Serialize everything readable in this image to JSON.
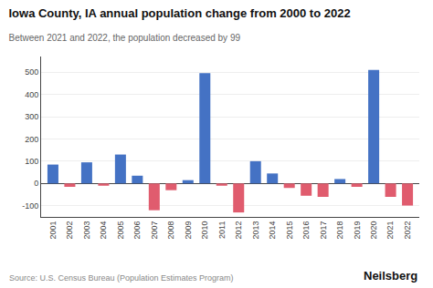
{
  "chart_data": {
    "type": "bar",
    "title": "Iowa County, IA annual population change from 2000 to 2022",
    "subtitle": "Between 2021 and 2022, the population decreased by 99",
    "annotations": [
      "Source: U.S. Census Bureau (Population Estimates Program)",
      "Neilsberg"
    ],
    "categories": [
      "2001",
      "2002",
      "2003",
      "2004",
      "2005",
      "2006",
      "2007",
      "2008",
      "2009",
      "2010",
      "2011",
      "2012",
      "2013",
      "2014",
      "2015",
      "2016",
      "2017",
      "2018",
      "2019",
      "2020",
      "2021",
      "2022"
    ],
    "values": [
      85,
      -15,
      95,
      -10,
      130,
      35,
      -120,
      -30,
      15,
      495,
      -10,
      -130,
      100,
      45,
      -20,
      -55,
      -60,
      20,
      -15,
      510,
      -60,
      -99
    ],
    "colors": [
      "#4472C4",
      "#E05C6E",
      "#4472C4",
      "#E05C6E",
      "#4472C4",
      "#4472C4",
      "#E05C6E",
      "#E05C6E",
      "#4472C4",
      "#4472C4",
      "#E05C6E",
      "#E05C6E",
      "#4472C4",
      "#4472C4",
      "#E05C6E",
      "#E05C6E",
      "#E05C6E",
      "#4472C4",
      "#E05C6E",
      "#4472C4",
      "#E05C6E",
      "#E05C6E"
    ],
    "ylim": [
      -150,
      570
    ],
    "yticks": [
      -100,
      0,
      100,
      200,
      300,
      400,
      500
    ],
    "grid": true
  }
}
